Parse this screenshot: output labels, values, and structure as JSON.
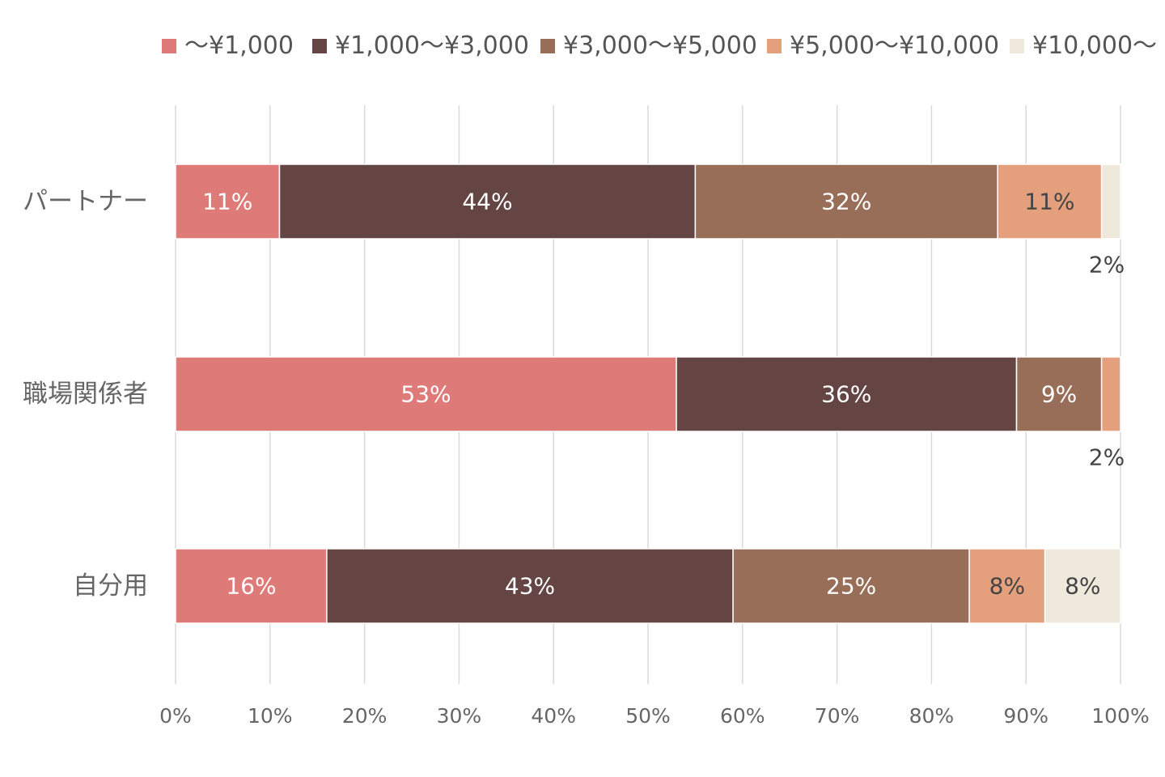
{
  "chart_data": {
    "type": "bar",
    "orientation": "horizontal",
    "stacked": "percent",
    "title": "",
    "xlabel": "",
    "ylabel": "",
    "xlim": [
      0,
      100
    ],
    "grid": "vertical",
    "legend_position": "top",
    "categories": [
      "パートナー",
      "職場関係者",
      "自分用"
    ],
    "x_ticks": [
      "0%",
      "10%",
      "20%",
      "30%",
      "40%",
      "50%",
      "60%",
      "70%",
      "80%",
      "90%",
      "100%"
    ],
    "series": [
      {
        "name": "〜¥1,000",
        "color": "#de7a77",
        "values": [
          11,
          53,
          16
        ],
        "labels": [
          "11%",
          "53%",
          "16%"
        ]
      },
      {
        "name": "¥1,000〜¥3,000",
        "color": "#654543",
        "values": [
          44,
          36,
          43
        ],
        "labels": [
          "44%",
          "36%",
          "43%"
        ]
      },
      {
        "name": "¥3,000〜¥5,000",
        "color": "#986e59",
        "values": [
          32,
          9,
          25
        ],
        "labels": [
          "32%",
          "9%",
          "25%"
        ]
      },
      {
        "name": "¥5,000〜¥10,000",
        "color": "#e4a07c",
        "values": [
          11,
          2,
          8
        ],
        "labels": [
          "11%",
          "2%",
          "8%"
        ]
      },
      {
        "name": "¥10,000〜",
        "color": "#efe9dc",
        "values": [
          2,
          0,
          8
        ],
        "labels": [
          "2%",
          "",
          "8%"
        ]
      }
    ]
  }
}
